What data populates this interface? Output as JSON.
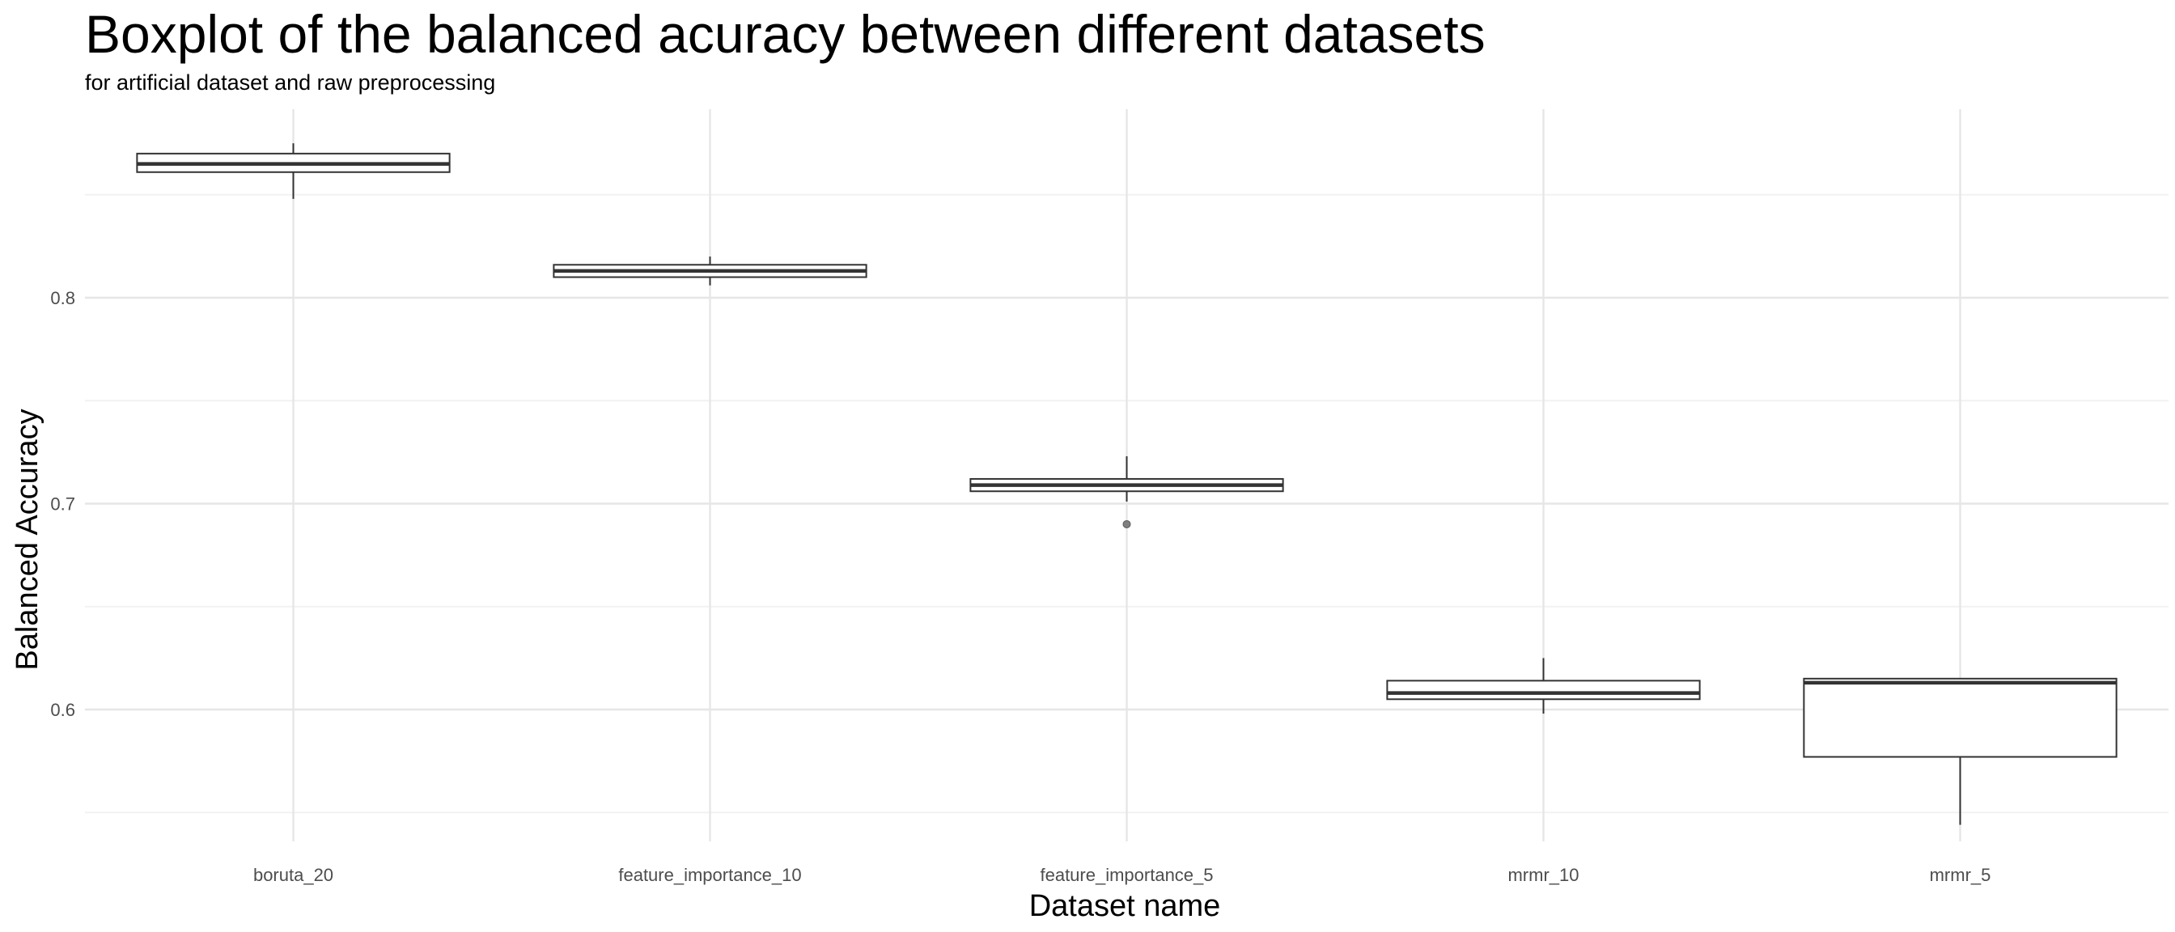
{
  "chart_data": {
    "type": "boxplot",
    "title": "Boxplot of the balanced acuracy between different datasets",
    "subtitle": "for artificial dataset and raw preprocessing",
    "xlabel": "Dataset name",
    "ylabel": "Balanced Accuracy",
    "ylim": [
      0.535,
      0.885
    ],
    "yticks": [
      0.6,
      0.7,
      0.8
    ],
    "ytick_labels": [
      "0.6",
      "0.7",
      "0.8"
    ],
    "grid": true,
    "categories": [
      "boruta_20",
      "feature_importance_10",
      "feature_importance_5",
      "mrmr_10",
      "mrmr_5"
    ],
    "boxes": [
      {
        "category": "boruta_20",
        "whisker_low": 0.848,
        "q1": 0.861,
        "median": 0.865,
        "q3": 0.87,
        "whisker_high": 0.875,
        "outliers": []
      },
      {
        "category": "feature_importance_10",
        "whisker_low": 0.806,
        "q1": 0.81,
        "median": 0.813,
        "q3": 0.816,
        "whisker_high": 0.82,
        "outliers": []
      },
      {
        "category": "feature_importance_5",
        "whisker_low": 0.701,
        "q1": 0.706,
        "median": 0.709,
        "q3": 0.712,
        "whisker_high": 0.723,
        "outliers": [
          0.69
        ]
      },
      {
        "category": "mrmr_10",
        "whisker_low": 0.598,
        "q1": 0.605,
        "median": 0.608,
        "q3": 0.614,
        "whisker_high": 0.625,
        "outliers": []
      },
      {
        "category": "mrmr_5",
        "whisker_low": 0.544,
        "q1": 0.577,
        "median": 0.613,
        "q3": 0.615,
        "whisker_high": 0.615,
        "outliers": []
      }
    ],
    "colors": {
      "box_fill": "#ffffff",
      "box_stroke": "#333333",
      "grid_major": "#e6e6e6",
      "grid_minor": "#f2f2f2",
      "outlier": "#7f7f7f"
    }
  }
}
